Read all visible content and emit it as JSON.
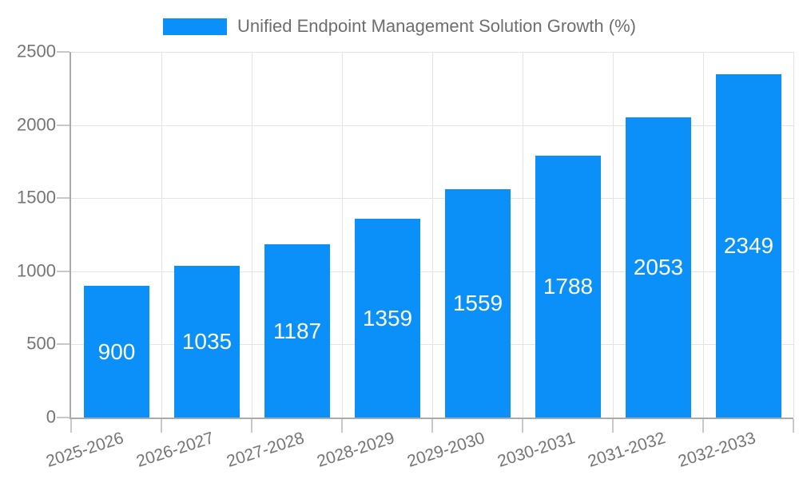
{
  "legend": {
    "label": "Unified Endpoint Management Solution Growth (%)"
  },
  "chart_data": {
    "type": "bar",
    "title": "Unified Endpoint Management Solution Growth (%)",
    "categories": [
      "2025-2026",
      "2026-2027",
      "2027-2028",
      "2028-2029",
      "2029-2030",
      "2030-2031",
      "2031-2032",
      "2032-2033"
    ],
    "values": [
      900,
      1035,
      1187,
      1359,
      1559,
      1788,
      2053,
      2349
    ],
    "xlabel": "",
    "ylabel": "",
    "ylim": [
      0,
      2500
    ],
    "yticks": [
      0,
      500,
      1000,
      1500,
      2000,
      2500
    ],
    "grid": "on",
    "legend_position": "top-center",
    "value_labels": "inside-center-white",
    "x_label_rotation_deg": 18,
    "colors": {
      "bar": "#0a90f8",
      "value_label": "#ffffff",
      "tick_label": "#757575",
      "legend_text": "#6e6e6e",
      "gridline": "#e4e4e4",
      "axis_line": "#aaaaaa",
      "tick_mark": "#c8c8c8",
      "background": "#ffffff"
    }
  }
}
